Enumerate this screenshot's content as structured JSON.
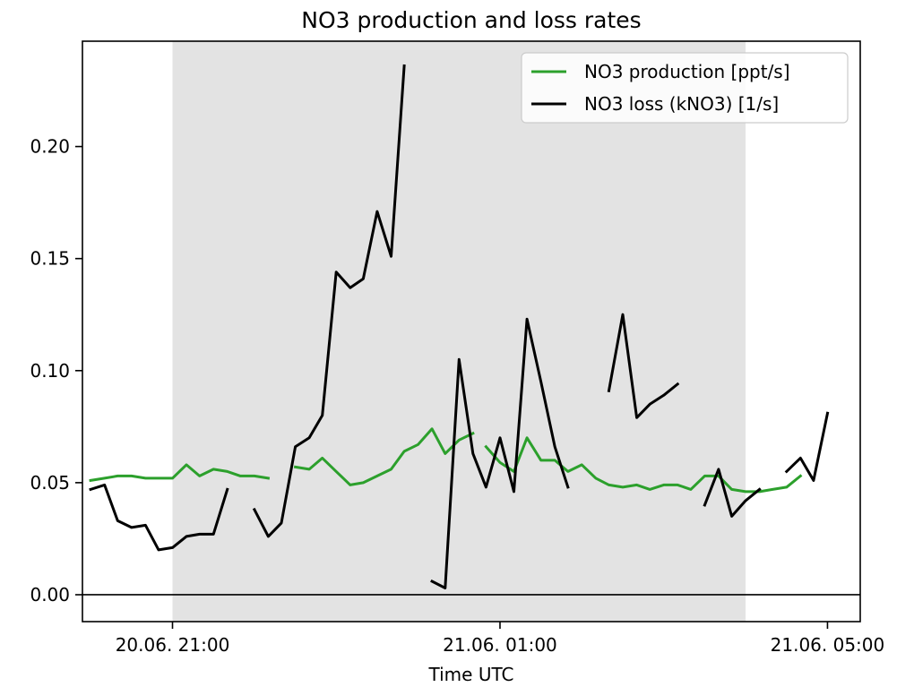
{
  "chart_data": {
    "type": "line",
    "title": "NO3 production and loss rates",
    "xlabel": "Time UTC",
    "ylabel": "",
    "x_unit": "hours after 20.06. 21:00 UTC",
    "xlim": [
      -1.1,
      8.4
    ],
    "ylim": [
      -0.012,
      0.247
    ],
    "x_ticks": [
      {
        "x": 0,
        "label": "20.06. 21:00"
      },
      {
        "x": 4,
        "label": "21.06. 01:00"
      },
      {
        "x": 8,
        "label": "21.06. 05:00"
      }
    ],
    "y_ticks": [
      {
        "y": 0.0,
        "label": "0.00"
      },
      {
        "y": 0.05,
        "label": "0.05"
      },
      {
        "y": 0.1,
        "label": "0.10"
      },
      {
        "y": 0.15,
        "label": "0.15"
      },
      {
        "y": 0.2,
        "label": "0.20"
      }
    ],
    "shaded_region": {
      "x0": 0,
      "x1": 7.0,
      "color": "#e3e3e3"
    },
    "zero_line": true,
    "grid": false,
    "legend": {
      "placement": "top-right"
    },
    "series": [
      {
        "name": "NO3 production [ppt/s]",
        "color": "#2ca02c",
        "segments": [
          [
            [
              -1.0,
              0.051
            ],
            [
              -0.83,
              0.052
            ],
            [
              -0.67,
              0.053
            ],
            [
              -0.5,
              0.053
            ],
            [
              -0.33,
              0.052
            ],
            [
              -0.17,
              0.052
            ],
            [
              0.0,
              0.052
            ],
            [
              0.17,
              0.058
            ],
            [
              0.33,
              0.053
            ],
            [
              0.5,
              0.056
            ],
            [
              0.67,
              0.055
            ],
            [
              0.83,
              0.053
            ],
            [
              1.0,
              0.053
            ],
            [
              1.17,
              0.052
            ]
          ],
          [
            [
              1.5,
              0.057
            ],
            [
              1.67,
              0.056
            ],
            [
              1.83,
              0.061
            ],
            [
              2.0,
              0.055
            ],
            [
              2.17,
              0.049
            ],
            [
              2.33,
              0.05
            ],
            [
              2.5,
              0.053
            ],
            [
              2.67,
              0.056
            ],
            [
              2.83,
              0.064
            ],
            [
              3.0,
              0.067
            ],
            [
              3.17,
              0.074
            ],
            [
              3.33,
              0.063
            ],
            [
              3.5,
              0.069
            ],
            [
              3.67,
              0.072
            ]
          ],
          [
            [
              3.83,
              0.066
            ],
            [
              4.0,
              0.059
            ],
            [
              4.17,
              0.055
            ],
            [
              4.33,
              0.07
            ],
            [
              4.5,
              0.06
            ],
            [
              4.67,
              0.06
            ],
            [
              4.83,
              0.055
            ],
            [
              5.0,
              0.058
            ],
            [
              5.17,
              0.052
            ],
            [
              5.33,
              0.049
            ],
            [
              5.5,
              0.048
            ],
            [
              5.67,
              0.049
            ],
            [
              5.83,
              0.047
            ],
            [
              6.0,
              0.049
            ],
            [
              6.17,
              0.049
            ],
            [
              6.33,
              0.047
            ],
            [
              6.5,
              0.053
            ],
            [
              6.67,
              0.053
            ],
            [
              6.83,
              0.047
            ],
            [
              7.0,
              0.046
            ],
            [
              7.17,
              0.046
            ],
            [
              7.33,
              0.047
            ],
            [
              7.5,
              0.048
            ],
            [
              7.67,
              0.053
            ]
          ]
        ]
      },
      {
        "name": "NO3 loss (kNO3) [1/s]",
        "color": "#000000",
        "segments": [
          [
            [
              -1.0,
              0.047
            ],
            [
              -0.83,
              0.049
            ],
            [
              -0.67,
              0.033
            ],
            [
              -0.5,
              0.03
            ],
            [
              -0.33,
              0.031
            ],
            [
              -0.17,
              0.02
            ],
            [
              0.0,
              0.021
            ],
            [
              0.17,
              0.026
            ],
            [
              0.33,
              0.027
            ],
            [
              0.5,
              0.027
            ],
            [
              0.67,
              0.047
            ]
          ],
          [
            [
              1.0,
              0.038
            ],
            [
              1.17,
              0.026
            ],
            [
              1.33,
              0.032
            ],
            [
              1.5,
              0.066
            ],
            [
              1.67,
              0.07
            ],
            [
              1.83,
              0.08
            ],
            [
              2.0,
              0.144
            ],
            [
              2.17,
              0.137
            ],
            [
              2.33,
              0.141
            ],
            [
              2.5,
              0.171
            ],
            [
              2.67,
              0.151
            ],
            [
              2.83,
              0.236
            ]
          ],
          [
            [
              3.17,
              0.006
            ],
            [
              3.33,
              0.003
            ],
            [
              3.5,
              0.105
            ],
            [
              3.67,
              0.063
            ],
            [
              3.83,
              0.048
            ],
            [
              4.0,
              0.07
            ],
            [
              4.17,
              0.046
            ],
            [
              4.33,
              0.123
            ],
            [
              4.5,
              0.095
            ],
            [
              4.67,
              0.066
            ],
            [
              4.83,
              0.048
            ]
          ],
          [
            [
              5.33,
              0.091
            ],
            [
              5.5,
              0.125
            ],
            [
              5.67,
              0.079
            ],
            [
              5.83,
              0.085
            ],
            [
              6.0,
              0.089
            ],
            [
              6.17,
              0.094
            ]
          ],
          [
            [
              6.5,
              0.04
            ],
            [
              6.67,
              0.056
            ],
            [
              6.83,
              0.035
            ],
            [
              7.0,
              0.042
            ],
            [
              7.17,
              0.047
            ]
          ],
          [
            [
              7.5,
              0.055
            ],
            [
              7.67,
              0.061
            ],
            [
              7.83,
              0.051
            ],
            [
              8.0,
              0.081
            ]
          ]
        ]
      }
    ]
  }
}
